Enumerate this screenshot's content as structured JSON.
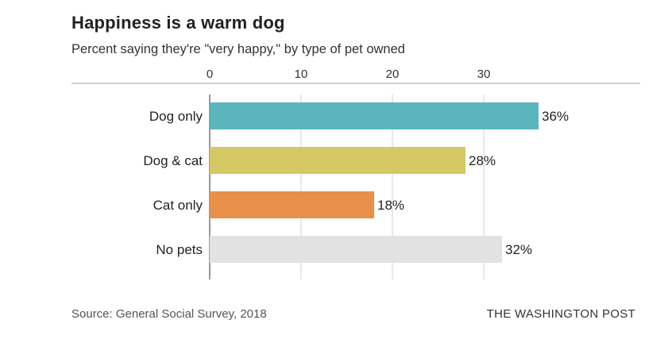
{
  "header": {
    "title": "Happiness is a warm dog",
    "subtitle": "Percent saying they're \"very happy,\" by type of pet owned"
  },
  "footer": {
    "source": "Source: General Social Survey, 2018",
    "credit": "THE WASHINGTON POST"
  },
  "chart_data": {
    "type": "bar",
    "orientation": "horizontal",
    "categories": [
      "Dog only",
      "Dog & cat",
      "Cat only",
      "No pets"
    ],
    "values": [
      36,
      28,
      18,
      32
    ],
    "value_labels": [
      "36%",
      "28%",
      "18%",
      "32%"
    ],
    "colors": [
      "#5bb5bd",
      "#d4c965",
      "#e88f4a",
      "#e2e2e2"
    ],
    "xlim": [
      0,
      40
    ],
    "xticks": [
      0,
      10,
      20,
      30
    ],
    "xtick_position": "top",
    "grid": true
  }
}
